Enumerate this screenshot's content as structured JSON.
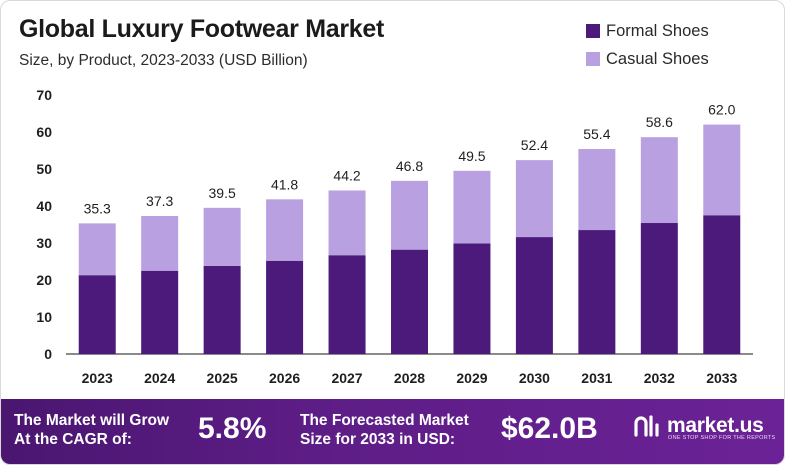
{
  "chart_data": {
    "type": "bar",
    "stacked": true,
    "title": "Global Luxury Footwear Market",
    "subtitle": "Size, by Product, 2023-2033 (USD Billion)",
    "categories": [
      "2023",
      "2024",
      "2025",
      "2026",
      "2027",
      "2028",
      "2029",
      "2030",
      "2031",
      "2032",
      "2033"
    ],
    "series": [
      {
        "name": "Formal Shoes",
        "color": "#4c1a7a",
        "values": [
          21.3,
          22.5,
          23.8,
          25.2,
          26.7,
          28.2,
          29.9,
          31.6,
          33.5,
          35.4,
          37.5
        ]
      },
      {
        "name": "Casual Shoes",
        "color": "#b9a0e0",
        "values": [
          14.0,
          14.8,
          15.7,
          16.6,
          17.5,
          18.6,
          19.6,
          20.8,
          21.9,
          23.2,
          24.5
        ]
      }
    ],
    "totals": [
      "35.3",
      "37.3",
      "39.5",
      "41.8",
      "44.2",
      "46.8",
      "49.5",
      "52.4",
      "55.4",
      "58.6",
      "62.0"
    ],
    "ylim": [
      0,
      70
    ],
    "yticks": [
      0,
      10,
      20,
      30,
      40,
      50,
      60,
      70
    ],
    "xlabel": "",
    "ylabel": "",
    "legend_position": "top-right",
    "grid": false
  },
  "footer": {
    "cagr_label_line1": "The Market will Grow",
    "cagr_label_line2": "At the CAGR of:",
    "cagr_value": "5.8%",
    "forecast_label_line1": "The Forecasted Market",
    "forecast_label_line2": "Size for 2033 in USD:",
    "forecast_value": "$62.0B"
  },
  "brand": {
    "name": "market.us",
    "tagline": "ONE STOP SHOP FOR THE REPORTS"
  }
}
